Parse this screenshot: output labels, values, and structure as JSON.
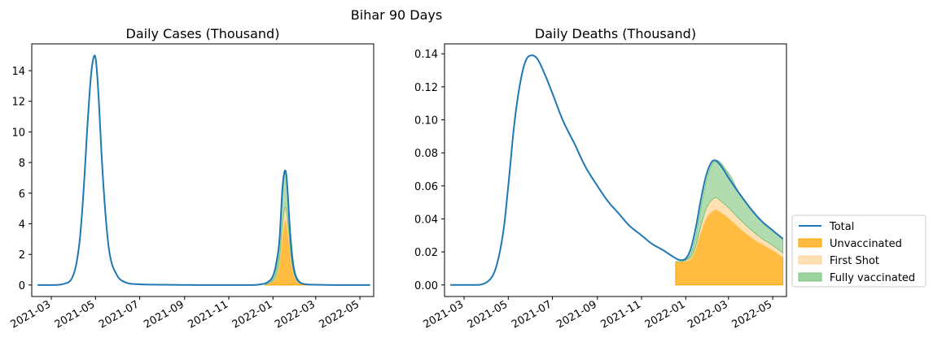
{
  "suptitle": "Bihar 90 Days",
  "colors": {
    "total": "#1f77b4",
    "unvaccinated": "#ffa500",
    "first_shot": "#ffd699",
    "fully_vaccinated": "#7cc47c"
  },
  "legend": {
    "placement": "outside-right",
    "items": [
      {
        "label": "Total",
        "kind": "line"
      },
      {
        "label": "Unvaccinated",
        "kind": "patch"
      },
      {
        "label": "First Shot",
        "kind": "patch"
      },
      {
        "label": "Fully vaccinated",
        "kind": "patch"
      }
    ]
  },
  "chart_data": [
    {
      "type": "area",
      "title": "Daily Cases (Thousand)",
      "xlabel": "",
      "ylabel": "",
      "x_range": [
        "2021-02-02",
        "2022-05-20"
      ],
      "ylim": [
        -0.75,
        15.75
      ],
      "x_ticks": [
        "2021-03",
        "2021-05",
        "2021-07",
        "2021-09",
        "2021-11",
        "2022-01",
        "2022-03",
        "2022-05"
      ],
      "y_ticks": [
        0,
        2,
        4,
        6,
        8,
        10,
        12,
        14
      ],
      "series": [
        {
          "name": "Total",
          "type": "line",
          "x": [
            "2021-02-10",
            "2021-03-01",
            "2021-03-20",
            "2021-03-30",
            "2021-04-05",
            "2021-04-10",
            "2021-04-15",
            "2021-04-20",
            "2021-04-25",
            "2021-04-28",
            "2021-04-30",
            "2021-05-02",
            "2021-05-05",
            "2021-05-10",
            "2021-05-15",
            "2021-05-20",
            "2021-05-30",
            "2021-06-10",
            "2021-06-30",
            "2021-08-01",
            "2021-10-01",
            "2021-12-01",
            "2021-12-15",
            "2021-12-25",
            "2022-01-01",
            "2022-01-05",
            "2022-01-10",
            "2022-01-12",
            "2022-01-14",
            "2022-01-16",
            "2022-01-18",
            "2022-01-20",
            "2022-01-22",
            "2022-01-24",
            "2022-01-27",
            "2022-01-30",
            "2022-02-03",
            "2022-02-08",
            "2022-02-15",
            "2022-03-01",
            "2022-04-01",
            "2022-05-15"
          ],
          "values": [
            0,
            0,
            0.1,
            0.5,
            1.5,
            3.3,
            6.5,
            10.5,
            13.8,
            14.8,
            15.0,
            14.5,
            12.5,
            8.0,
            4.5,
            2.2,
            0.7,
            0.2,
            0.05,
            0.02,
            0,
            0,
            0.05,
            0.2,
            0.6,
            1.3,
            3.0,
            4.6,
            6.3,
            7.2,
            7.5,
            6.9,
            5.5,
            3.8,
            2.0,
            1.0,
            0.4,
            0.15,
            0.05,
            0.02,
            0,
            0
          ]
        },
        {
          "name": "Unvaccinated",
          "type": "area",
          "x": [
            "2021-12-20",
            "2022-01-01",
            "2022-01-05",
            "2022-01-10",
            "2022-01-13",
            "2022-01-16",
            "2022-01-18",
            "2022-01-20",
            "2022-01-23",
            "2022-01-26",
            "2022-01-30",
            "2022-02-05",
            "2022-02-15",
            "2022-03-01"
          ],
          "values": [
            0,
            0.25,
            0.5,
            1.4,
            2.8,
            3.9,
            4.25,
            3.9,
            2.8,
            1.5,
            0.6,
            0.15,
            0.03,
            0
          ]
        },
        {
          "name": "First Shot",
          "type": "area",
          "x": [
            "2021-12-20",
            "2022-01-01",
            "2022-01-05",
            "2022-01-10",
            "2022-01-13",
            "2022-01-16",
            "2022-01-18",
            "2022-01-20",
            "2022-01-23",
            "2022-01-26",
            "2022-01-30",
            "2022-02-05",
            "2022-02-15",
            "2022-03-01"
          ],
          "values": [
            0,
            0.05,
            0.1,
            0.3,
            0.6,
            0.8,
            0.85,
            0.8,
            0.6,
            0.35,
            0.15,
            0.05,
            0.01,
            0
          ]
        },
        {
          "name": "Fully vaccinated",
          "type": "area",
          "x": [
            "2021-12-20",
            "2022-01-01",
            "2022-01-05",
            "2022-01-10",
            "2022-01-13",
            "2022-01-16",
            "2022-01-18",
            "2022-01-20",
            "2022-01-23",
            "2022-01-26",
            "2022-01-30",
            "2022-02-05",
            "2022-02-15",
            "2022-03-01"
          ],
          "values": [
            0,
            0.1,
            0.3,
            1.0,
            1.9,
            2.2,
            2.3,
            2.1,
            1.6,
            1.2,
            0.5,
            0.15,
            0.03,
            0
          ]
        }
      ]
    },
    {
      "type": "area",
      "title": "Daily Deaths (Thousand)",
      "xlabel": "",
      "ylabel": "",
      "x_range": [
        "2021-02-02",
        "2022-05-20"
      ],
      "ylim": [
        -0.007,
        0.146
      ],
      "x_ticks": [
        "2021-03",
        "2021-05",
        "2021-07",
        "2021-09",
        "2021-11",
        "2022-01",
        "2022-03",
        "2022-05"
      ],
      "y_ticks": [
        "0.00",
        "0.02",
        "0.04",
        "0.06",
        "0.08",
        "0.10",
        "0.12",
        "0.14"
      ],
      "series": [
        {
          "name": "Total",
          "type": "line",
          "x": [
            "2021-02-10",
            "2021-03-15",
            "2021-04-05",
            "2021-04-15",
            "2021-04-25",
            "2021-05-01",
            "2021-05-10",
            "2021-05-20",
            "2021-05-28",
            "2021-06-03",
            "2021-06-10",
            "2021-06-20",
            "2021-07-01",
            "2021-07-15",
            "2021-08-01",
            "2021-08-15",
            "2021-09-01",
            "2021-09-15",
            "2021-10-01",
            "2021-10-15",
            "2021-11-01",
            "2021-11-15",
            "2021-12-01",
            "2021-12-15",
            "2021-12-25",
            "2022-01-01",
            "2022-01-08",
            "2022-01-15",
            "2022-01-22",
            "2022-01-29",
            "2022-02-05",
            "2022-02-10",
            "2022-02-15",
            "2022-02-22",
            "2022-03-01",
            "2022-03-15",
            "2022-04-01",
            "2022-04-15",
            "2022-05-01",
            "2022-05-15"
          ],
          "values": [
            0,
            0,
            0.003,
            0.012,
            0.035,
            0.06,
            0.1,
            0.128,
            0.138,
            0.139,
            0.137,
            0.128,
            0.116,
            0.1,
            0.085,
            0.072,
            0.06,
            0.051,
            0.043,
            0.036,
            0.03,
            0.025,
            0.021,
            0.017,
            0.015,
            0.016,
            0.022,
            0.035,
            0.052,
            0.066,
            0.074,
            0.0755,
            0.074,
            0.07,
            0.065,
            0.056,
            0.046,
            0.039,
            0.033,
            0.028
          ]
        },
        {
          "name": "Unvaccinated",
          "type": "area",
          "x": [
            "2021-12-18",
            "2021-12-25",
            "2022-01-01",
            "2022-01-08",
            "2022-01-15",
            "2022-01-22",
            "2022-01-29",
            "2022-02-05",
            "2022-02-12",
            "2022-02-18",
            "2022-02-25",
            "2022-03-05",
            "2022-03-15",
            "2022-04-01",
            "2022-04-15",
            "2022-05-01",
            "2022-05-15"
          ],
          "values": [
            0.014,
            0.014,
            0.0145,
            0.016,
            0.022,
            0.032,
            0.04,
            0.044,
            0.0455,
            0.044,
            0.042,
            0.039,
            0.035,
            0.029,
            0.025,
            0.021,
            0.017
          ]
        },
        {
          "name": "First Shot",
          "type": "area",
          "x": [
            "2021-12-18",
            "2021-12-25",
            "2022-01-01",
            "2022-01-08",
            "2022-01-15",
            "2022-01-22",
            "2022-01-29",
            "2022-02-05",
            "2022-02-12",
            "2022-02-18",
            "2022-02-25",
            "2022-03-05",
            "2022-03-15",
            "2022-04-01",
            "2022-04-15",
            "2022-05-01",
            "2022-05-15"
          ],
          "values": [
            0,
            0,
            0.0005,
            0.001,
            0.002,
            0.004,
            0.006,
            0.007,
            0.0075,
            0.007,
            0.0065,
            0.006,
            0.0055,
            0.0045,
            0.0035,
            0.003,
            0.0025
          ]
        },
        {
          "name": "Fully vaccinated",
          "type": "area",
          "x": [
            "2021-12-18",
            "2021-12-25",
            "2022-01-01",
            "2022-01-08",
            "2022-01-15",
            "2022-01-22",
            "2022-01-29",
            "2022-02-05",
            "2022-02-12",
            "2022-02-18",
            "2022-02-25",
            "2022-03-05",
            "2022-03-15",
            "2022-04-01",
            "2022-04-15",
            "2022-05-01",
            "2022-05-15"
          ],
          "values": [
            0,
            0,
            0.0005,
            0.002,
            0.006,
            0.011,
            0.016,
            0.021,
            0.0225,
            0.023,
            0.0215,
            0.02,
            0.0155,
            0.0125,
            0.0105,
            0.009,
            0.0085
          ]
        }
      ]
    }
  ]
}
